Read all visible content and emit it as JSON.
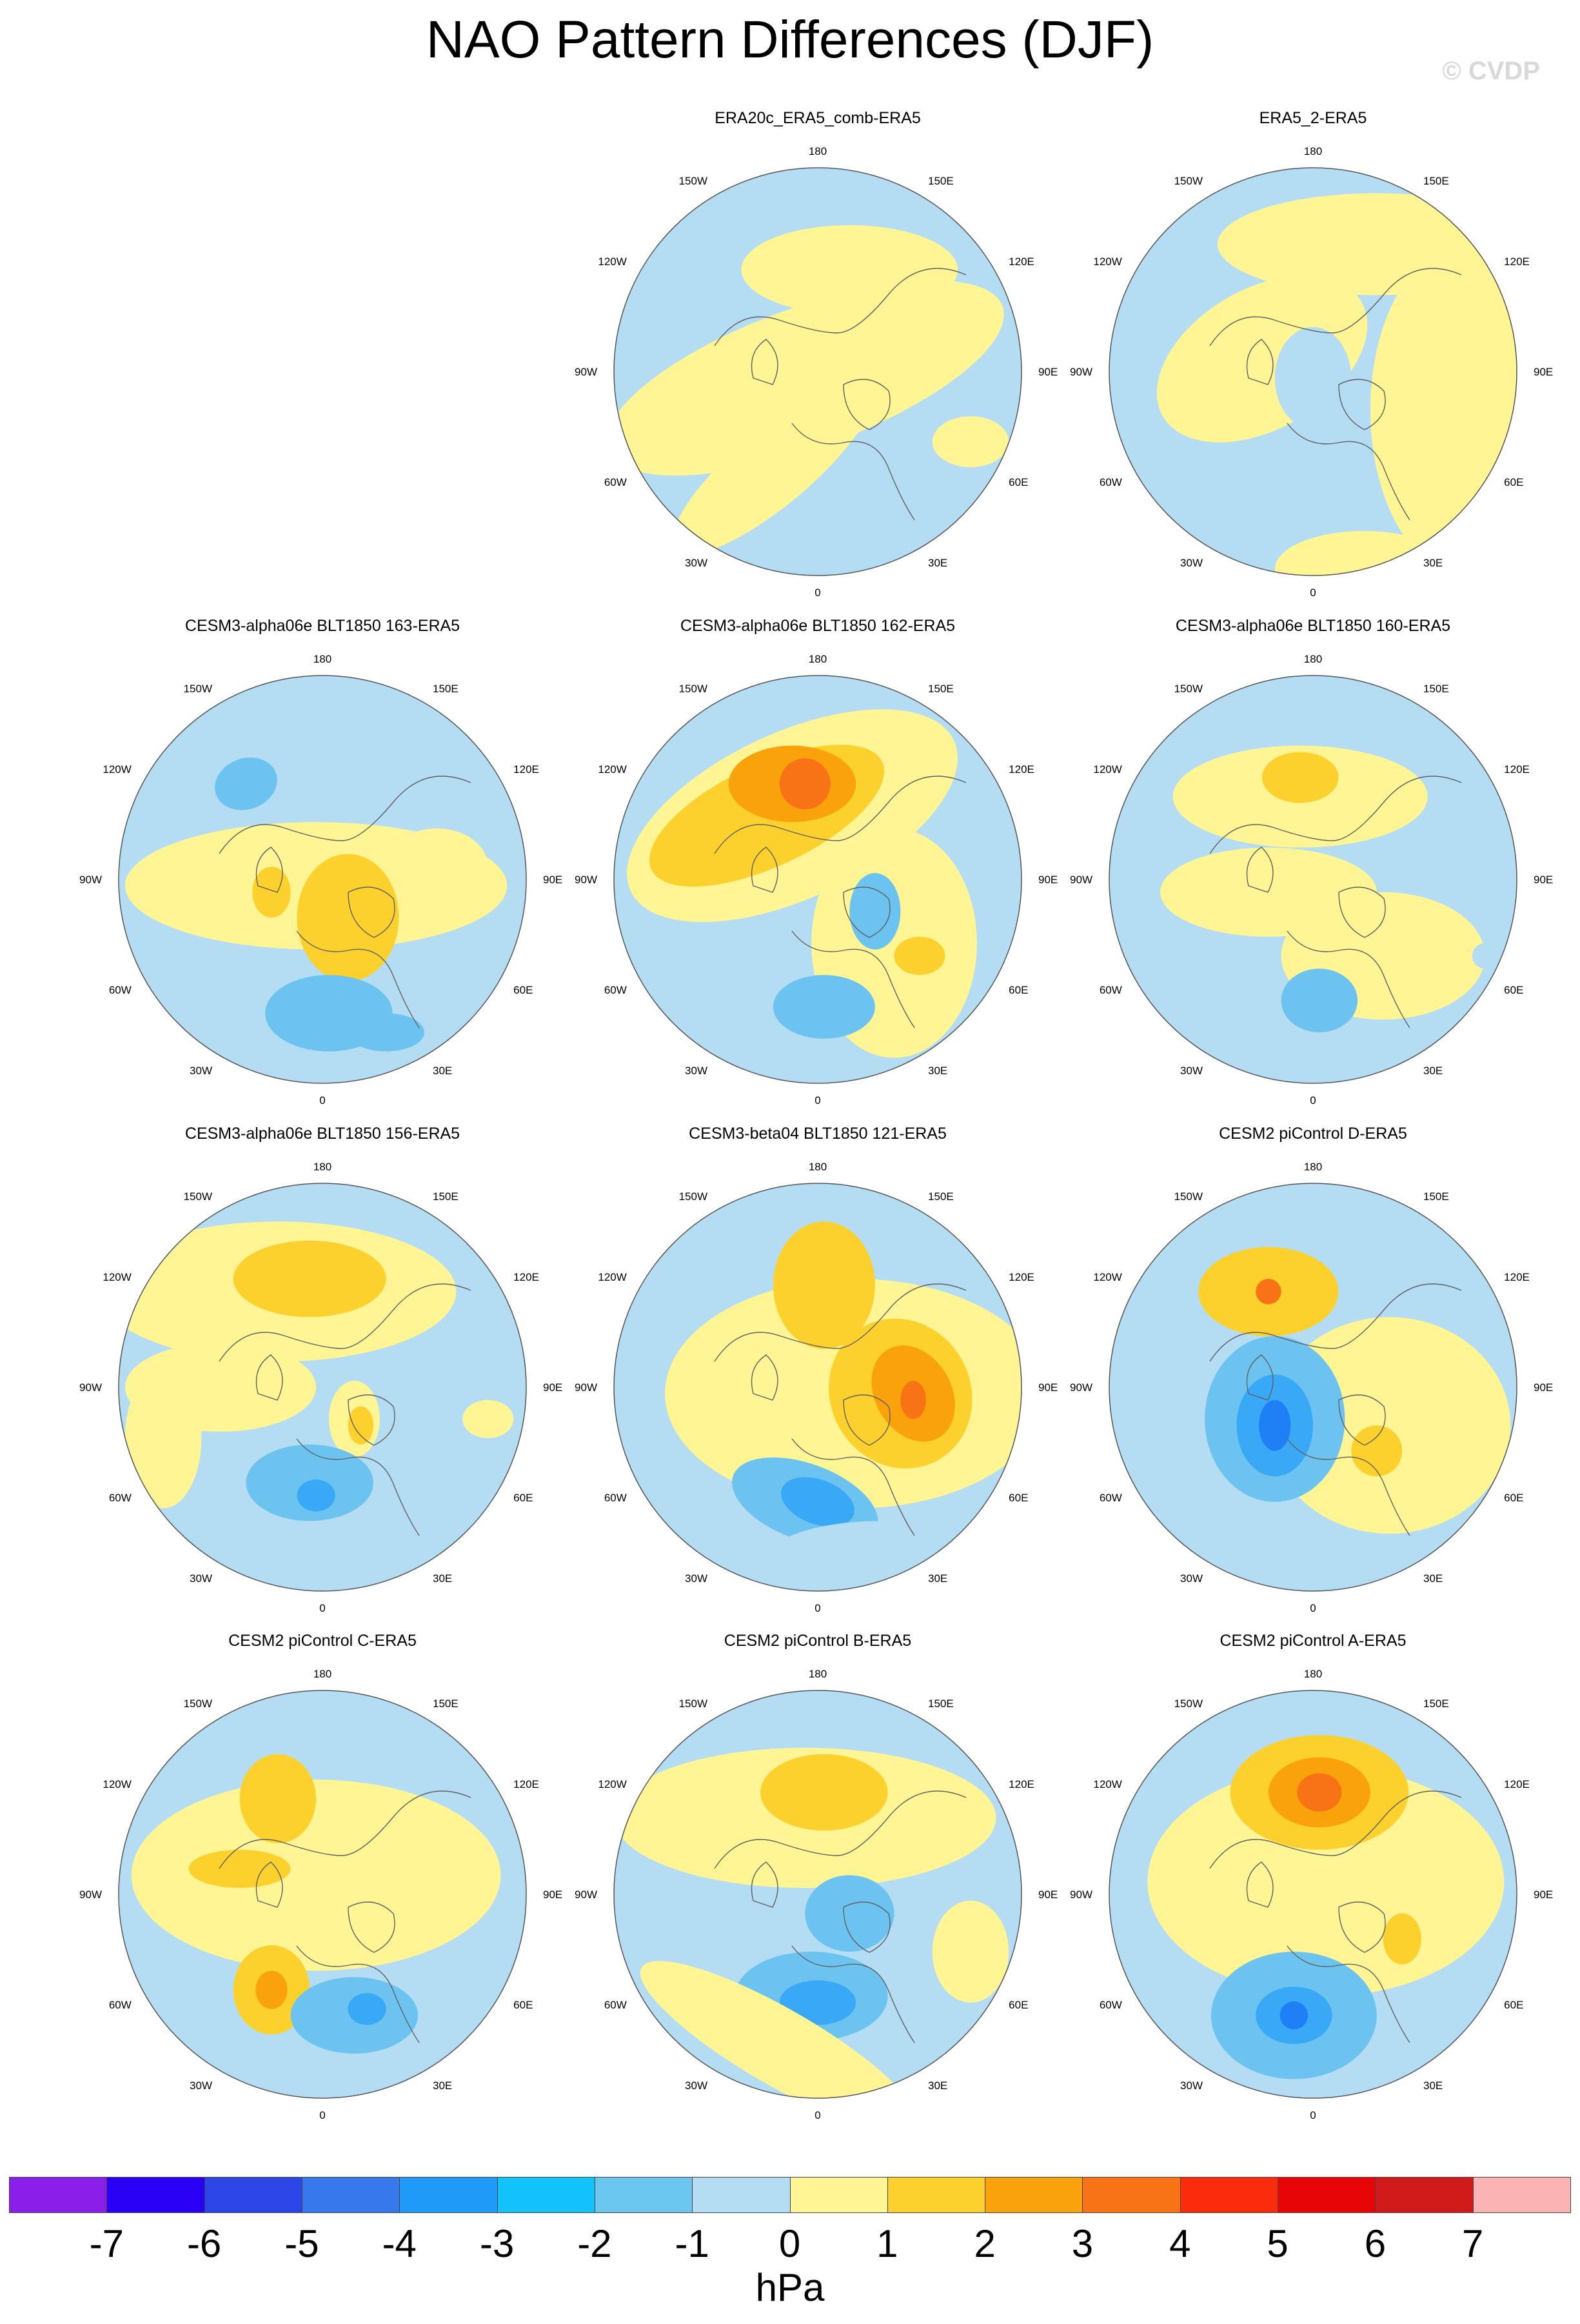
{
  "title": "NAO Pattern Differences (DJF)",
  "credit": "© CVDP",
  "units": "hPa",
  "palette": {
    "neg1": "#b4dcf2",
    "neg2": "#6cc3f0",
    "neg3": "#39a8f5",
    "neg4": "#1f7ff5",
    "pos1": "#fff595",
    "pos2": "#fcd12e",
    "pos3": "#f9a20c",
    "pos4": "#f87315",
    "land": "#606060",
    "border": "#555555"
  },
  "longitude_labels": [
    "180",
    "150E",
    "120E",
    "90E",
    "60E",
    "30E",
    "0",
    "30W",
    "60W",
    "90W",
    "120W",
    "150W"
  ],
  "panels": [
    {
      "title": "",
      "empty": true
    },
    {
      "title": "ERA20c_ERA5_comb-ERA5"
    },
    {
      "title": "ERA5_2-ERA5"
    },
    {
      "title": "CESM3-alpha06e BLT1850 163-ERA5"
    },
    {
      "title": "CESM3-alpha06e BLT1850 162-ERA5"
    },
    {
      "title": "CESM3-alpha06e BLT1850 160-ERA5"
    },
    {
      "title": "CESM3-alpha06e BLT1850 156-ERA5"
    },
    {
      "title": "CESM3-beta04 BLT1850 121-ERA5"
    },
    {
      "title": "CESM2 piControl D-ERA5"
    },
    {
      "title": "CESM2 piControl C-ERA5"
    },
    {
      "title": "CESM2 piControl B-ERA5"
    },
    {
      "title": "CESM2 piControl A-ERA5"
    }
  ],
  "colorbar": {
    "colors": [
      "#8a1de8",
      "#2a00f5",
      "#2c45e6",
      "#3778ec",
      "#1f9bf7",
      "#12c3fa",
      "#6cc7f0",
      "#b4dcf2",
      "#fff595",
      "#fcd12e",
      "#f9a20c",
      "#f87315",
      "#fa2c0c",
      "#e80505",
      "#d01a1a",
      "#fbb3b3"
    ],
    "ticks": [
      "-7",
      "-6",
      "-5",
      "-4",
      "-3",
      "-2",
      "-1",
      "0",
      "1",
      "2",
      "3",
      "4",
      "5",
      "6",
      "7"
    ]
  }
}
